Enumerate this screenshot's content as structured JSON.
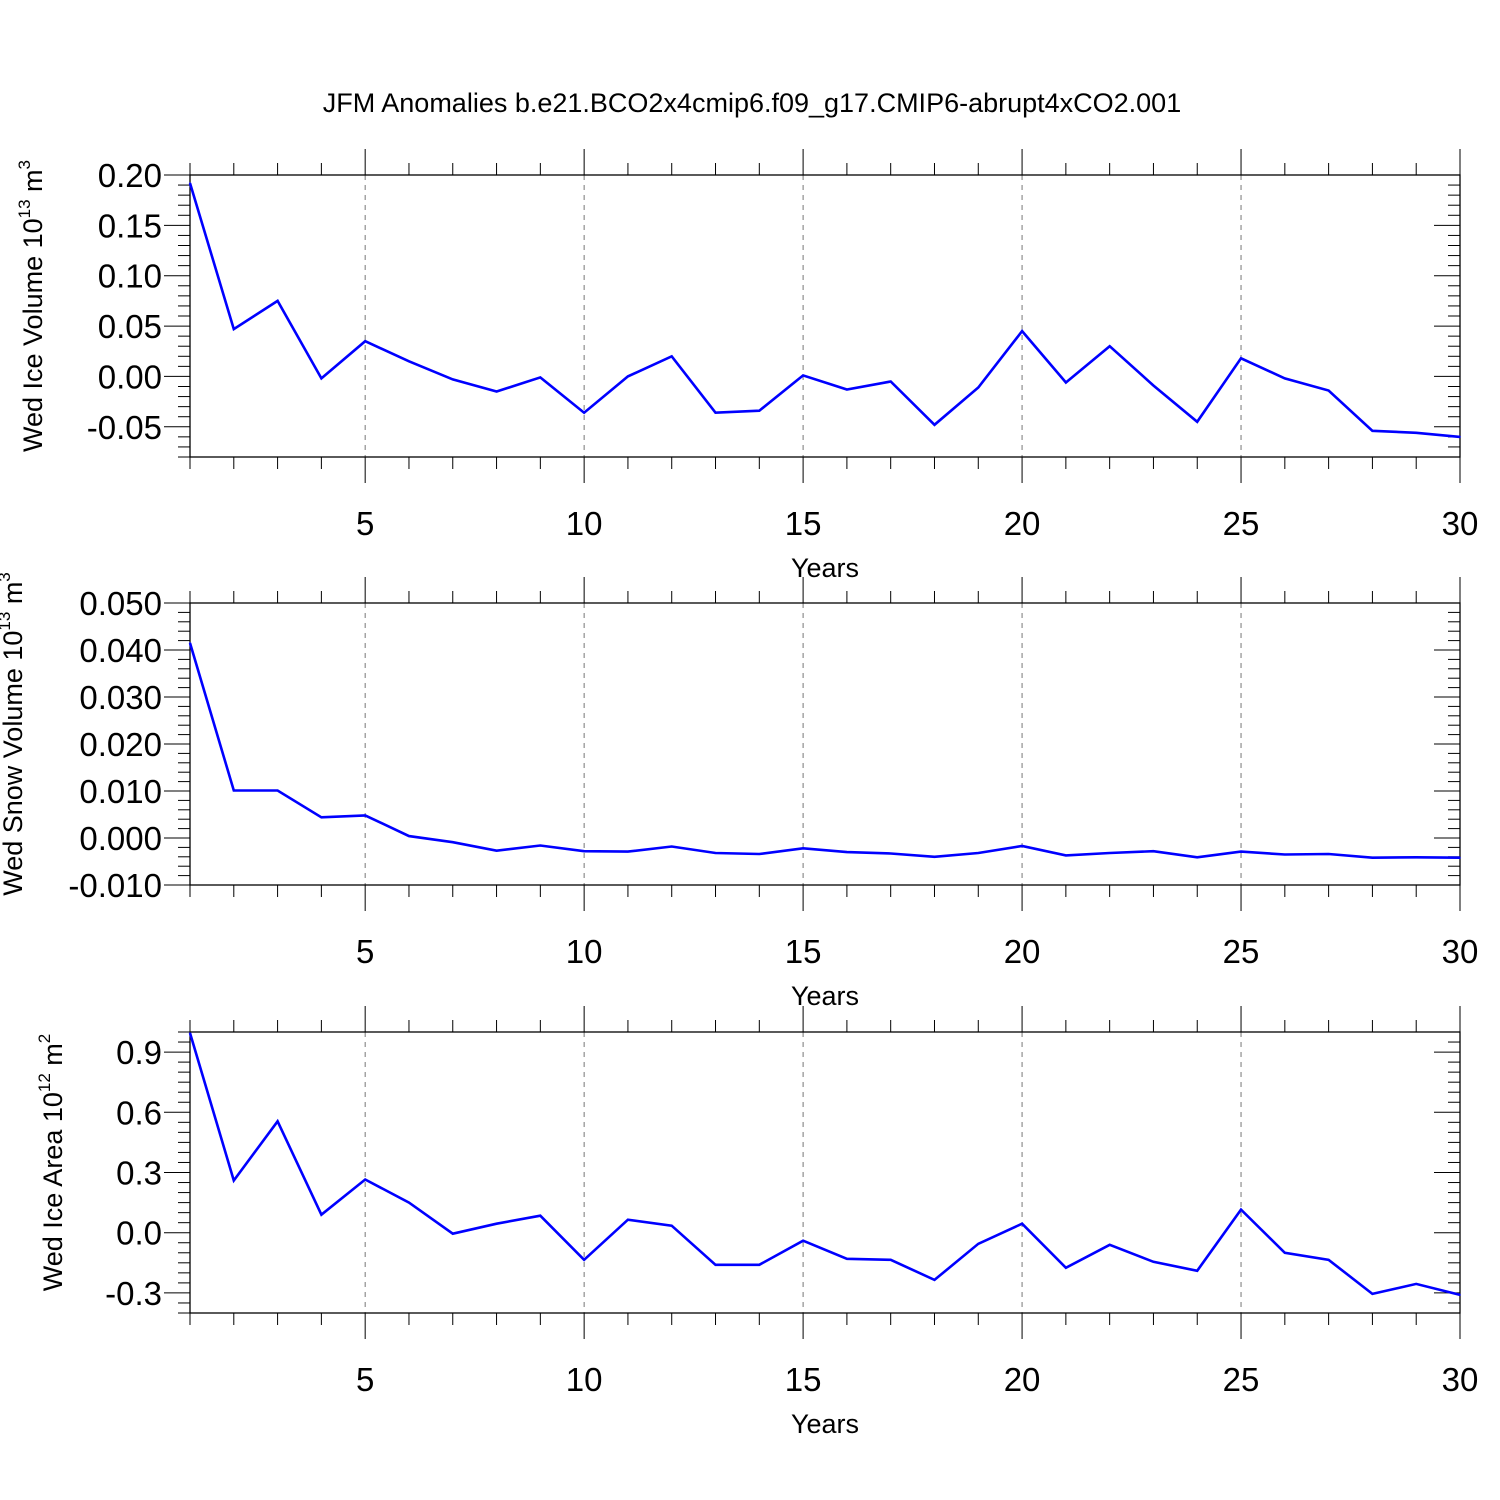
{
  "figure_title": "JFM Anomalies b.e21.BCO2x4cmip6.f09_g17.CMIP6-abrupt4xCO2.001",
  "colors": {
    "series": "#0000ff",
    "grid": "#777777"
  },
  "chart_data": [
    {
      "type": "line",
      "title": "",
      "ylabel": {
        "main": "Wed Ice Volume 10",
        "exp": "13",
        "unit": " m",
        "unit_exp": "3"
      },
      "xlabel": "Years",
      "xlim": [
        1,
        30
      ],
      "ylim": [
        -0.08,
        0.2
      ],
      "xticks": [
        5,
        10,
        15,
        20,
        25,
        30
      ],
      "xtick_labels": [
        "5",
        "10",
        "15",
        "20",
        "25",
        "30"
      ],
      "yticks": [
        0.2,
        0.15,
        0.1,
        0.05,
        0.0,
        -0.05
      ],
      "ytick_labels": [
        "0.20",
        "0.15",
        "0.10",
        "0.05",
        "0.00",
        "-0.05"
      ],
      "y_minor_step": 0.01,
      "grid": "vertical dashed at major x ticks",
      "x": [
        1,
        2,
        3,
        4,
        5,
        6,
        7,
        8,
        9,
        10,
        11,
        12,
        13,
        14,
        15,
        16,
        17,
        18,
        19,
        20,
        21,
        22,
        23,
        24,
        25,
        26,
        27,
        28,
        29,
        30
      ],
      "series": [
        {
          "values": [
            0.192,
            0.047,
            0.075,
            -0.002,
            0.035,
            0.015,
            -0.003,
            -0.015,
            -0.001,
            -0.036,
            0.0,
            0.02,
            -0.036,
            -0.034,
            0.001,
            -0.013,
            -0.005,
            -0.048,
            -0.011,
            0.045,
            -0.006,
            0.03,
            -0.009,
            -0.045,
            0.018,
            -0.002,
            -0.014,
            -0.054,
            -0.056,
            -0.06
          ]
        }
      ]
    },
    {
      "type": "line",
      "title": "",
      "ylabel": {
        "main": "Wed Snow Volume 10",
        "exp": "13",
        "unit": " m",
        "unit_exp": "3"
      },
      "xlabel": "Years",
      "xlim": [
        1,
        30
      ],
      "ylim": [
        -0.01,
        0.05
      ],
      "xticks": [
        5,
        10,
        15,
        20,
        25,
        30
      ],
      "xtick_labels": [
        "5",
        "10",
        "15",
        "20",
        "25",
        "30"
      ],
      "yticks": [
        0.05,
        0.04,
        0.03,
        0.02,
        0.01,
        0.0,
        -0.01
      ],
      "ytick_labels": [
        "0.050",
        "0.040",
        "0.030",
        "0.020",
        "0.010",
        "0.000",
        "-0.010"
      ],
      "y_minor_step": 0.002,
      "grid": "vertical dashed at major x ticks",
      "x": [
        1,
        2,
        3,
        4,
        5,
        6,
        7,
        8,
        9,
        10,
        11,
        12,
        13,
        14,
        15,
        16,
        17,
        18,
        19,
        20,
        21,
        22,
        23,
        24,
        25,
        26,
        27,
        28,
        29,
        30
      ],
      "series": [
        {
          "values": [
            0.0415,
            0.0101,
            0.0101,
            0.0044,
            0.0048,
            0.0004,
            -0.0009,
            -0.0027,
            -0.0016,
            -0.0028,
            -0.0029,
            -0.0018,
            -0.0032,
            -0.0034,
            -0.0022,
            -0.003,
            -0.0033,
            -0.004,
            -0.0032,
            -0.0017,
            -0.0037,
            -0.0032,
            -0.0028,
            -0.0041,
            -0.0029,
            -0.0035,
            -0.0034,
            -0.0042,
            -0.0041,
            -0.0042
          ]
        }
      ]
    },
    {
      "type": "line",
      "title": "",
      "ylabel": {
        "main": "Wed Ice Area 10",
        "exp": "12",
        "unit": " m",
        "unit_exp": "2"
      },
      "xlabel": "Years",
      "xlim": [
        1,
        30
      ],
      "ylim": [
        -0.4,
        1.0
      ],
      "xticks": [
        5,
        10,
        15,
        20,
        25,
        30
      ],
      "xtick_labels": [
        "5",
        "10",
        "15",
        "20",
        "25",
        "30"
      ],
      "yticks": [
        0.9,
        0.6,
        0.3,
        0.0,
        -0.3
      ],
      "ytick_labels": [
        "0.9",
        "0.6",
        "0.3",
        "0.0",
        "-0.3"
      ],
      "y_minor_step": 0.05,
      "grid": "vertical dashed at major x ticks",
      "x": [
        1,
        2,
        3,
        4,
        5,
        6,
        7,
        8,
        9,
        10,
        11,
        12,
        13,
        14,
        15,
        16,
        17,
        18,
        19,
        20,
        21,
        22,
        23,
        24,
        25,
        26,
        27,
        28,
        29,
        30
      ],
      "series": [
        {
          "values": [
            0.995,
            0.26,
            0.555,
            0.09,
            0.265,
            0.15,
            -0.005,
            0.045,
            0.085,
            -0.135,
            0.065,
            0.035,
            -0.16,
            -0.16,
            -0.04,
            -0.13,
            -0.135,
            -0.235,
            -0.055,
            0.045,
            -0.175,
            -0.06,
            -0.145,
            -0.19,
            0.115,
            -0.1,
            -0.135,
            -0.305,
            -0.255,
            -0.31
          ]
        }
      ]
    }
  ]
}
